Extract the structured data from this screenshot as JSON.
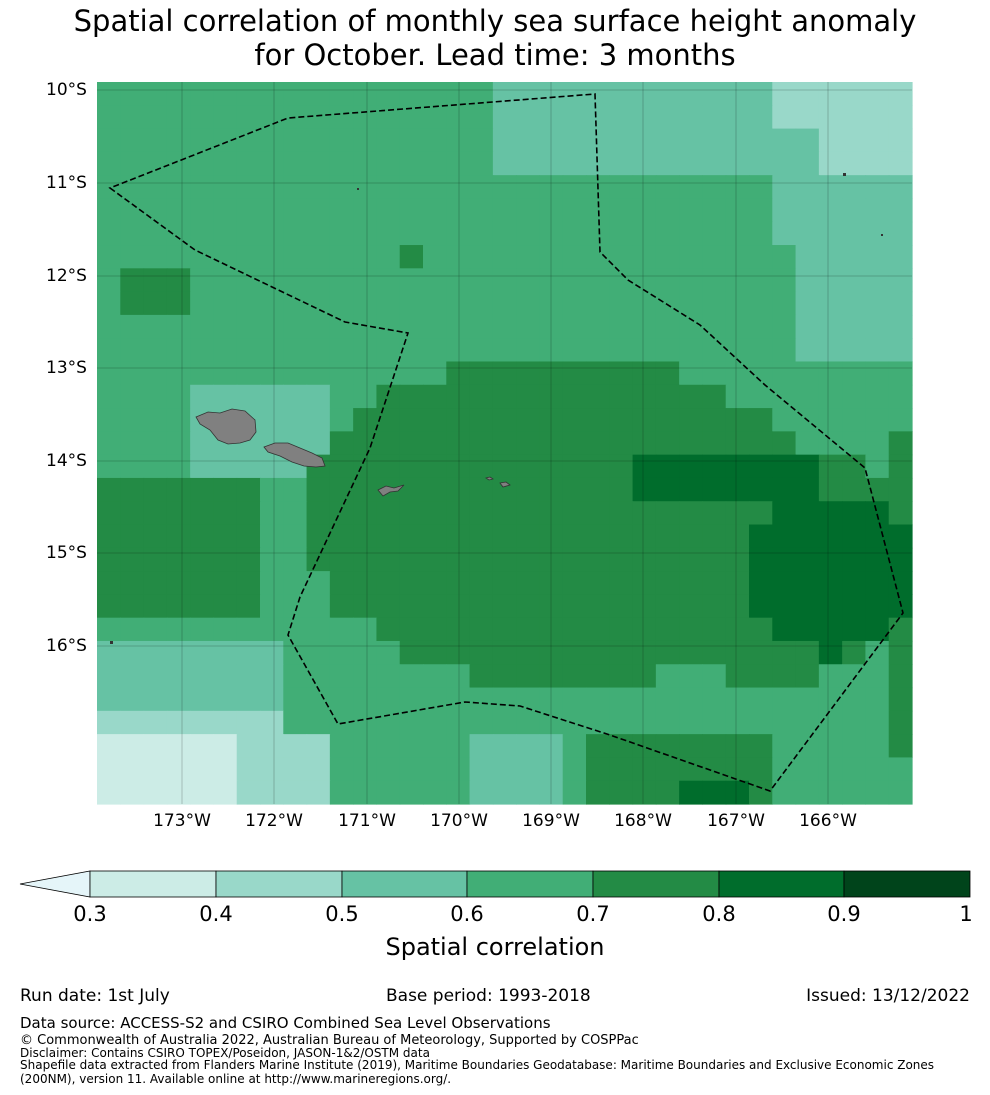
{
  "title": {
    "line1": "Spatial correlation of monthly sea surface height anomaly",
    "line2": "for October. Lead time: 3 months"
  },
  "map": {
    "lat_labels": [
      "10°S",
      "11°S",
      "12°S",
      "13°S",
      "14°S",
      "15°S",
      "16°S"
    ],
    "lon_labels": [
      "173°W",
      "172°W",
      "171°W",
      "170°W",
      "169°W",
      "168°W",
      "167°W",
      "166°W"
    ],
    "lat_range": [
      -10.0,
      -17.8
    ],
    "lon_range": [
      -174.0,
      -165.2
    ],
    "land_color": "#808080",
    "boundary": "dashed black line (EEZ outline)"
  },
  "colorbar": {
    "label": "Spatial correlation",
    "ticks": [
      "0.3",
      "0.4",
      "0.5",
      "0.6",
      "0.7",
      "0.8",
      "0.9",
      "1"
    ],
    "extend": "min",
    "colors": [
      "#e5f5f9",
      "#ccece6",
      "#99d8c9",
      "#66c2a4",
      "#41ae76",
      "#238b45",
      "#006d2c",
      "#00441b"
    ]
  },
  "footer": {
    "run_date": "Run date: 1st July",
    "base_period": "Base period: 1993-2018",
    "issued": "Issued: 13/12/2022",
    "data_source": "Data source: ACCESS-S2 and CSIRO Combined Sea Level Observations",
    "copyright": "© Commonwealth of Australia 2022, Australian Bureau of Meteorology, Supported by COSPPac",
    "disclaimer": "Disclaimer: Contains CSIRO TOPEX/Poseidon, JASON-1&2/OSTM data",
    "shapefile_1": "Shapefile data extracted from Flanders Marine Institute (2019), Maritime Boundaries Geodatabase: Maritime Boundaries and Exclusive Economic Zones",
    "shapefile_2": "(200NM), version 11. Available online at http://www.marineregions.org/."
  }
}
